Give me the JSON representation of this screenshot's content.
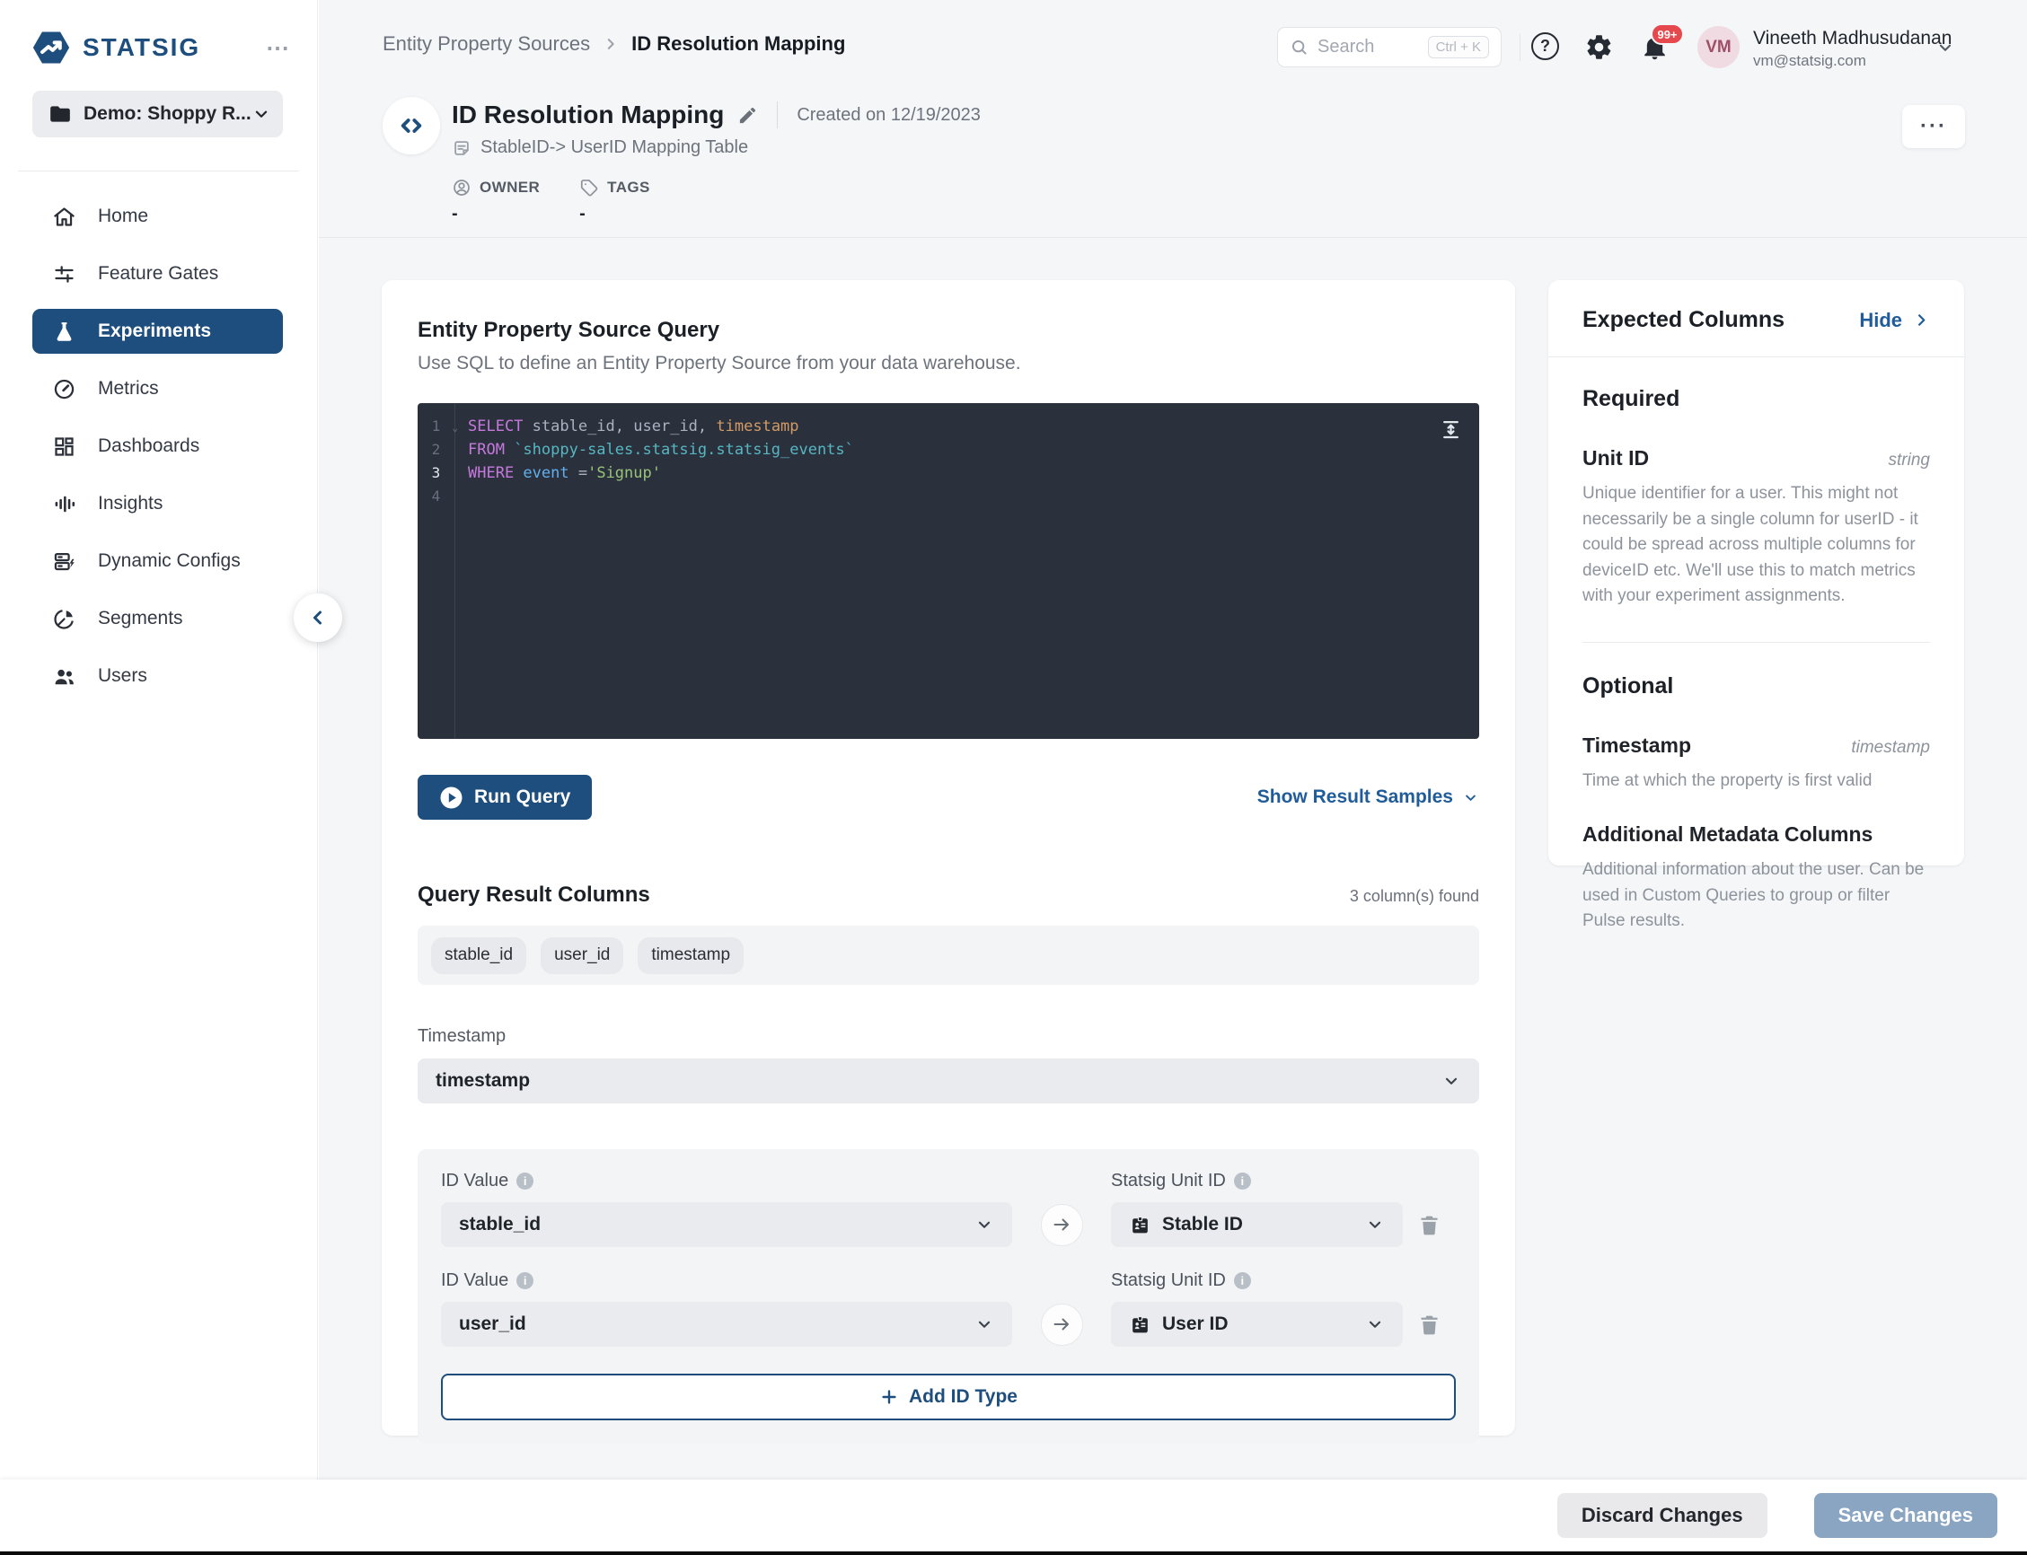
{
  "icons": {
    "overflow": "⋯",
    "more_options": "···",
    "fold_caret": "⌄",
    "help_glyph": "?",
    "info_glyph": "i"
  },
  "sidebar": {
    "logo_text": "STATSIG",
    "project": "Demo: Shoppy R...",
    "items": [
      {
        "label": "Home"
      },
      {
        "label": "Feature Gates"
      },
      {
        "label": "Experiments",
        "active": true
      },
      {
        "label": "Metrics"
      },
      {
        "label": "Dashboards"
      },
      {
        "label": "Insights"
      },
      {
        "label": "Dynamic Configs"
      },
      {
        "label": "Segments"
      },
      {
        "label": "Users"
      }
    ]
  },
  "topbar": {
    "breadcrumb": {
      "parent": "Entity Property Sources",
      "current": "ID Resolution Mapping"
    },
    "search_placeholder": "Search",
    "search_shortcut": "Ctrl + K",
    "notification_count": "99+",
    "user": {
      "initials": "VM",
      "name": "Vineeth Madhusudanan",
      "email": "vm@statsig.com"
    }
  },
  "header": {
    "title": "ID Resolution Mapping",
    "created": "Created on 12/19/2023",
    "subtitle": "StableID-> UserID Mapping Table",
    "owner_label": "OWNER",
    "owner_value": "-",
    "tags_label": "TAGS",
    "tags_value": "-"
  },
  "query_card": {
    "title": "Entity Property Source Query",
    "subtitle": "Use SQL to define an Entity Property Source from your data warehouse.",
    "run_button": "Run Query",
    "samples_link": "Show Result Samples",
    "editor": {
      "active_line": 3,
      "lines": [
        [
          {
            "t": "SELECT ",
            "c": "kw"
          },
          {
            "t": "stable_id",
            "c": "plain"
          },
          {
            "t": ", ",
            "c": "plain"
          },
          {
            "t": "user_id",
            "c": "plain"
          },
          {
            "t": ", ",
            "c": "plain"
          },
          {
            "t": "timestamp",
            "c": "orange"
          }
        ],
        [
          {
            "t": "FROM ",
            "c": "kw"
          },
          {
            "t": "`shoppy-sales.statsig.statsig_events`",
            "c": "teal"
          }
        ],
        [
          {
            "t": "WHERE ",
            "c": "kw"
          },
          {
            "t": "event ",
            "c": "blue"
          },
          {
            "t": "=",
            "c": "plain"
          },
          {
            "t": "'Signup'",
            "c": "green"
          }
        ],
        []
      ]
    }
  },
  "results": {
    "title": "Query Result Columns",
    "count": "3 column(s) found",
    "columns": [
      "stable_id",
      "user_id",
      "timestamp"
    ],
    "timestamp_label": "Timestamp",
    "timestamp_value": "timestamp"
  },
  "mapping": {
    "rows": [
      {
        "id_label": "ID Value",
        "id_value": "stable_id",
        "unit_label": "Statsig Unit ID",
        "unit_value": "Stable ID"
      },
      {
        "id_label": "ID Value",
        "id_value": "user_id",
        "unit_label": "Statsig Unit ID",
        "unit_value": "User ID"
      }
    ],
    "add_button": "Add ID Type"
  },
  "expected": {
    "title": "Expected Columns",
    "hide_link": "Hide",
    "required_heading": "Required",
    "unit_id": {
      "name": "Unit ID",
      "type": "string",
      "desc": "Unique identifier for a user. This might not necessarily be a single column for userID - it could be spread across multiple columns for deviceID etc. We'll use this to match metrics with your experiment assignments."
    },
    "optional_heading": "Optional",
    "timestamp": {
      "name": "Timestamp",
      "type": "timestamp",
      "desc": "Time at which the property is first valid"
    },
    "metadata": {
      "name": "Additional Metadata Columns",
      "desc": "Additional information about the user. Can be used in Custom Queries to group or filter Pulse results."
    }
  },
  "footer": {
    "discard": "Discard Changes",
    "save": "Save Changes"
  }
}
